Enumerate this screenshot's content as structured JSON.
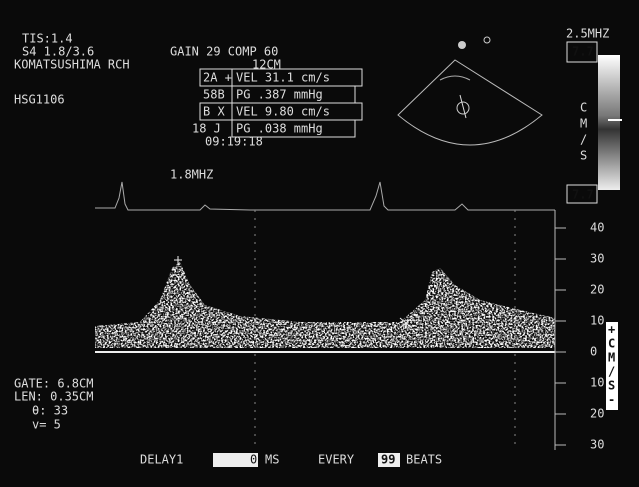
{
  "header": {
    "tis": "TIS:1.4",
    "probe": "S4 1.8/3.6",
    "gain": "GAIN 29 COMP 60",
    "site": "KOMATSUSHIMA RCH",
    "depth": "12CM",
    "id": "HSG1106",
    "probe_freq": "2.5MHZ",
    "doppler_freq": "1.8MHZ",
    "time": "09:19:18"
  },
  "measurements": {
    "rows": [
      [
        "2A +",
        "VEL 31.1 cm/s"
      ],
      [
        "58B",
        "PG .387 mmHg"
      ],
      [
        "B X",
        "VEL 9.80 cm/s"
      ],
      [
        "18 J",
        "PG .038 mmHg"
      ]
    ]
  },
  "colorbar": {
    "top": "7.7",
    "bottom": "7.7",
    "unit": [
      "C",
      "M",
      "/",
      "S"
    ]
  },
  "scale": {
    "labels": [
      "40",
      "30",
      "20",
      "10",
      "0",
      "10",
      "20",
      "30"
    ],
    "unit": [
      "+",
      "C",
      "M",
      "/",
      "S",
      "-"
    ]
  },
  "gate": {
    "gate": "GATE:  6.8CM",
    "len": "LEN: 0.35CM",
    "angle": "θ: 33",
    "v": "v= 5"
  },
  "footer": {
    "delay": "DELAY1",
    "delay_value": "0",
    "ms": "MS",
    "every": "EVERY",
    "beats_value": "99",
    "beats": "BEATS"
  }
}
